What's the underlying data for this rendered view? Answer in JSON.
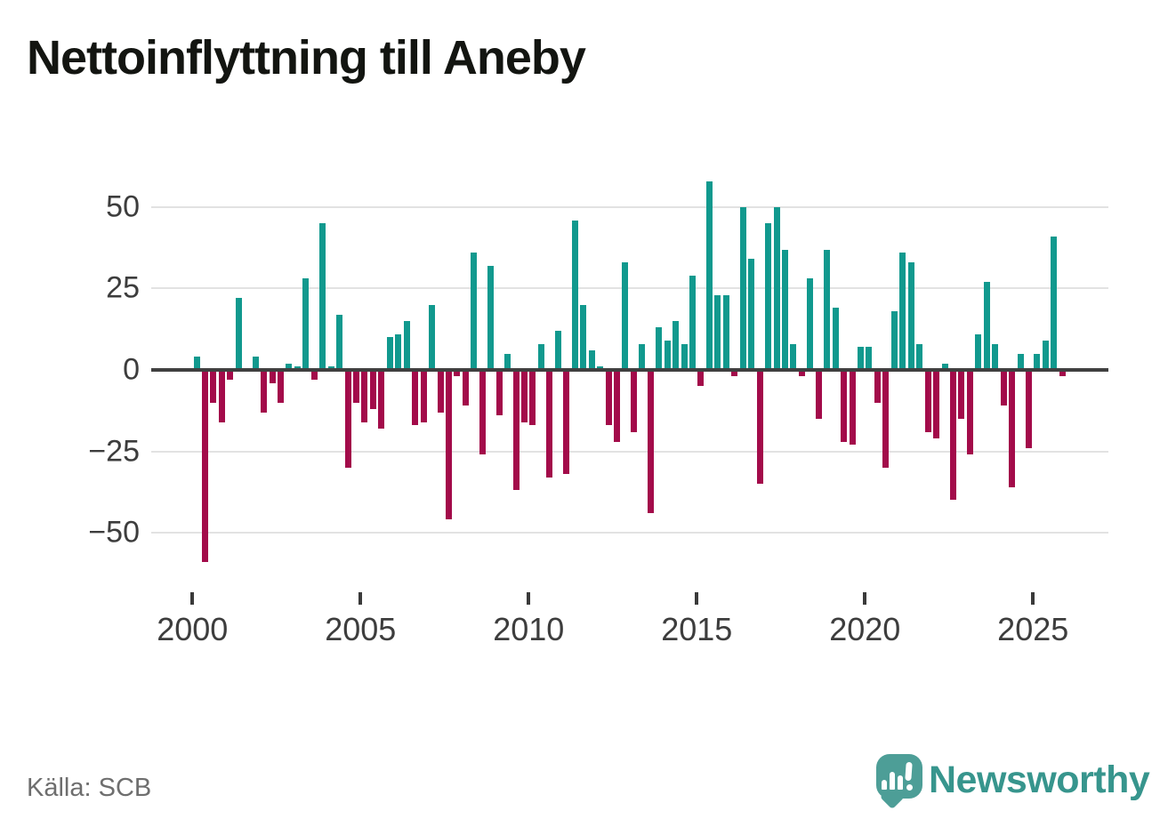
{
  "title": "Nettoinflyttning till Aneby",
  "source": "Källa: SCB",
  "branding": {
    "name": "Newsworthy"
  },
  "colors": {
    "positive": "#11998e",
    "negative": "#a30b4a",
    "grid": "#e2e2e2",
    "zero_axis": "#404040",
    "tick": "#3a3a3a",
    "axis_label": "#3d3d3d",
    "title_text": "#131511",
    "source_text": "#6e6e6e",
    "logo_bubble": "#4d9e97",
    "logo_wordmark": "#37958d"
  },
  "chart_data": {
    "type": "bar",
    "title": "Nettoinflyttning till Aneby",
    "xlabel": "",
    "ylabel": "",
    "interval": "quarterly",
    "start_year": 2000,
    "quarters_per_year": 4,
    "grid": true,
    "ylim": [
      -62,
      62
    ],
    "y_ticks": [
      50,
      25,
      0,
      -25,
      -50
    ],
    "y_tick_labels": [
      "50",
      "25",
      "0",
      "−25",
      "−50"
    ],
    "x_tick_years": [
      2000,
      2005,
      2010,
      2015,
      2020,
      2025
    ],
    "x_tick_labels": [
      "2000",
      "2005",
      "2010",
      "2015",
      "2020",
      "2025"
    ],
    "series": [
      {
        "name": "Nettoinflyttning",
        "values": [
          4,
          -59,
          -10,
          -16,
          -3,
          22,
          0,
          4,
          -13,
          -4,
          -10,
          2,
          1,
          28,
          -3,
          45,
          1,
          17,
          -30,
          -10,
          -16,
          -12,
          -18,
          10,
          11,
          15,
          -17,
          -16,
          20,
          -13,
          -46,
          -2,
          -11,
          36,
          -26,
          32,
          -14,
          5,
          -37,
          -16,
          -17,
          8,
          -33,
          12,
          -32,
          46,
          20,
          6,
          1,
          -17,
          -22,
          33,
          -19,
          8,
          -44,
          13,
          9,
          15,
          8,
          29,
          -5,
          58,
          23,
          23,
          -2,
          50,
          34,
          -35,
          45,
          50,
          37,
          8,
          -2,
          28,
          -15,
          37,
          19,
          -22,
          -23,
          7,
          7,
          -10,
          -30,
          18,
          36,
          33,
          8,
          -19,
          -21,
          2,
          -40,
          -15,
          -26,
          11,
          27,
          8,
          -11,
          -36,
          5,
          -24,
          5,
          9,
          41,
          -2
        ]
      }
    ]
  }
}
